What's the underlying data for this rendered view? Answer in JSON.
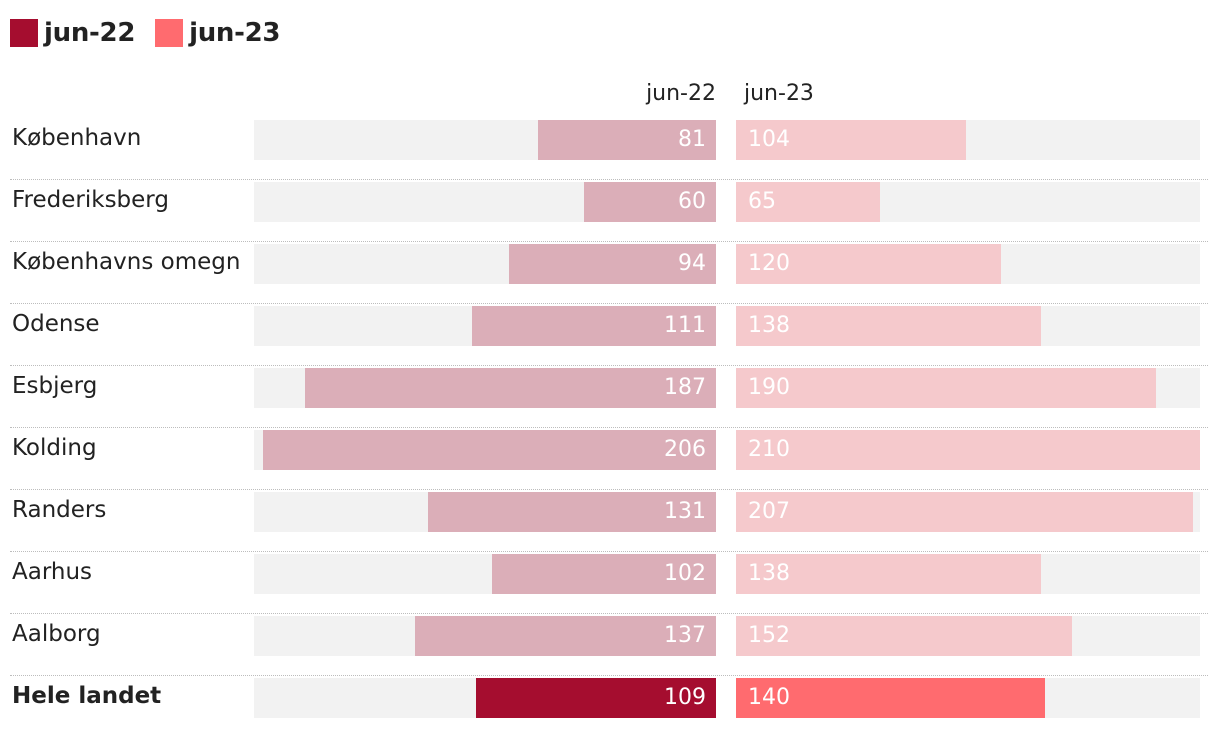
{
  "colors": {
    "series1_legend": "#a50d2f",
    "series2_legend": "#ff6b6f",
    "series1_bar": "#dbaeb8",
    "series2_bar": "#f5c9cc",
    "series1_total": "#a50d2f",
    "series2_total": "#ff6b6f",
    "track": "#f2f2f2"
  },
  "legend": [
    {
      "label": "jun-22",
      "color": "#a50d2f"
    },
    {
      "label": "jun-23",
      "color": "#ff6b6f"
    }
  ],
  "chart_data": {
    "type": "bar",
    "orientation": "horizontal-diverging",
    "legend_position": "top-left",
    "column_headers": [
      "jun-22",
      "jun-23"
    ],
    "axis_max": 210,
    "categories": [
      "København",
      "Frederiksberg",
      "Københavns omegn",
      "Odense",
      "Esbjerg",
      "Kolding",
      "Randers",
      "Aarhus",
      "Aalborg",
      "Hele landet"
    ],
    "highlight_category": "Hele landet",
    "series": [
      {
        "name": "jun-22",
        "values": [
          81,
          60,
          94,
          111,
          187,
          206,
          131,
          102,
          137,
          109
        ]
      },
      {
        "name": "jun-23",
        "values": [
          104,
          65,
          120,
          138,
          190,
          210,
          207,
          138,
          152,
          140
        ]
      }
    ]
  }
}
